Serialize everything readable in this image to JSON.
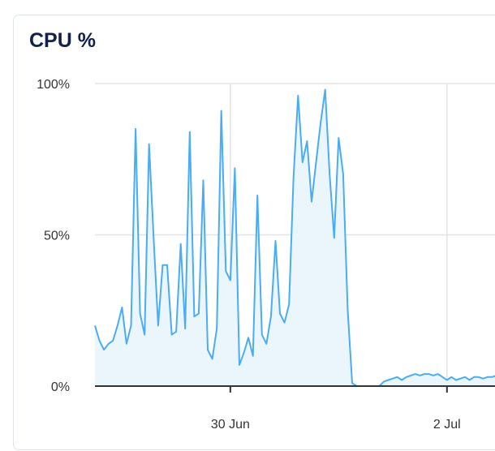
{
  "card": {
    "title": "CPU %"
  },
  "chart_data": {
    "type": "area",
    "title": "CPU %",
    "xlabel": "",
    "ylabel": "",
    "ylim": [
      0,
      100
    ],
    "y_ticks": [
      "0%",
      "50%",
      "100%"
    ],
    "y_tick_values": [
      0,
      50,
      100
    ],
    "x_ticks": [
      "30 Jun",
      "2 Jul"
    ],
    "x_tick_values": [
      "06-30 00:00",
      "07-02 00:00"
    ],
    "xlim": [
      "06-28 18:00",
      "07-02 11:00"
    ],
    "grid": true,
    "colors": {
      "line": "#4aacf5",
      "fill": "#eaf5fc",
      "grid": "#e3e3e3",
      "axis": "#333333"
    },
    "series": [
      {
        "x": [
          "06-28 18:00",
          "06-28 19:00",
          "06-28 20:00",
          "06-28 21:00",
          "06-28 22:00",
          "06-28 23:00",
          "06-29 00:00",
          "06-29 01:00",
          "06-29 02:00",
          "06-29 03:00",
          "06-29 04:00",
          "06-29 05:00",
          "06-29 06:00",
          "06-29 07:00",
          "06-29 08:00",
          "06-29 09:00",
          "06-29 10:00",
          "06-29 11:00",
          "06-29 12:00",
          "06-29 13:00",
          "06-29 14:00",
          "06-29 15:00",
          "06-29 16:00",
          "06-29 17:00",
          "06-29 18:00",
          "06-29 19:00",
          "06-29 20:00",
          "06-29 21:00",
          "06-29 22:00",
          "06-29 23:00",
          "06-30 00:00",
          "06-30 01:00",
          "06-30 02:00",
          "06-30 03:00",
          "06-30 04:00",
          "06-30 05:00",
          "06-30 06:00",
          "06-30 07:00",
          "06-30 08:00",
          "06-30 09:00",
          "06-30 10:00",
          "06-30 11:00",
          "06-30 12:00",
          "06-30 13:00",
          "06-30 14:00",
          "06-30 15:00",
          "06-30 16:00",
          "06-30 17:00",
          "06-30 18:00",
          "06-30 19:00",
          "06-30 20:00",
          "06-30 21:00",
          "06-30 22:00",
          "06-30 23:00",
          "07-01 00:00",
          "07-01 01:00",
          "07-01 02:00",
          "07-01 03:00",
          "07-01 04:00",
          "07-01 05:00",
          "07-01 06:00",
          "07-01 07:00",
          "07-01 08:00",
          "07-01 09:00",
          "07-01 10:00",
          "07-01 11:00",
          "07-01 12:00",
          "07-01 13:00",
          "07-01 14:00",
          "07-01 15:00",
          "07-01 16:00",
          "07-01 17:00",
          "07-01 18:00",
          "07-01 19:00",
          "07-01 20:00",
          "07-01 21:00",
          "07-01 22:00",
          "07-01 23:00",
          "07-02 00:00",
          "07-02 01:00",
          "07-02 02:00",
          "07-02 03:00",
          "07-02 04:00",
          "07-02 05:00",
          "07-02 06:00",
          "07-02 07:00",
          "07-02 08:00",
          "07-02 09:00",
          "07-02 10:00",
          "07-02 11:00"
        ],
        "y": [
          20,
          15,
          12,
          14,
          15,
          20,
          26,
          14,
          20,
          85,
          24,
          17,
          80,
          49,
          20,
          40,
          40,
          17,
          18,
          47,
          19,
          84,
          23,
          24,
          68,
          12,
          9,
          19,
          91,
          38,
          35,
          72,
          7,
          11,
          16,
          10,
          63,
          17,
          14,
          23,
          48,
          24,
          21,
          27,
          69,
          96,
          74,
          81,
          61,
          74,
          87,
          98,
          70,
          49,
          82,
          70,
          25,
          1,
          0,
          0,
          0,
          0,
          0,
          0,
          1.5,
          2,
          2.5,
          3,
          2,
          3,
          3.5,
          4,
          3.5,
          4,
          4,
          3.5,
          4,
          3,
          2,
          3,
          2,
          2.5,
          3,
          2,
          3,
          3,
          2.5,
          3,
          3,
          3.5
        ]
      }
    ]
  }
}
